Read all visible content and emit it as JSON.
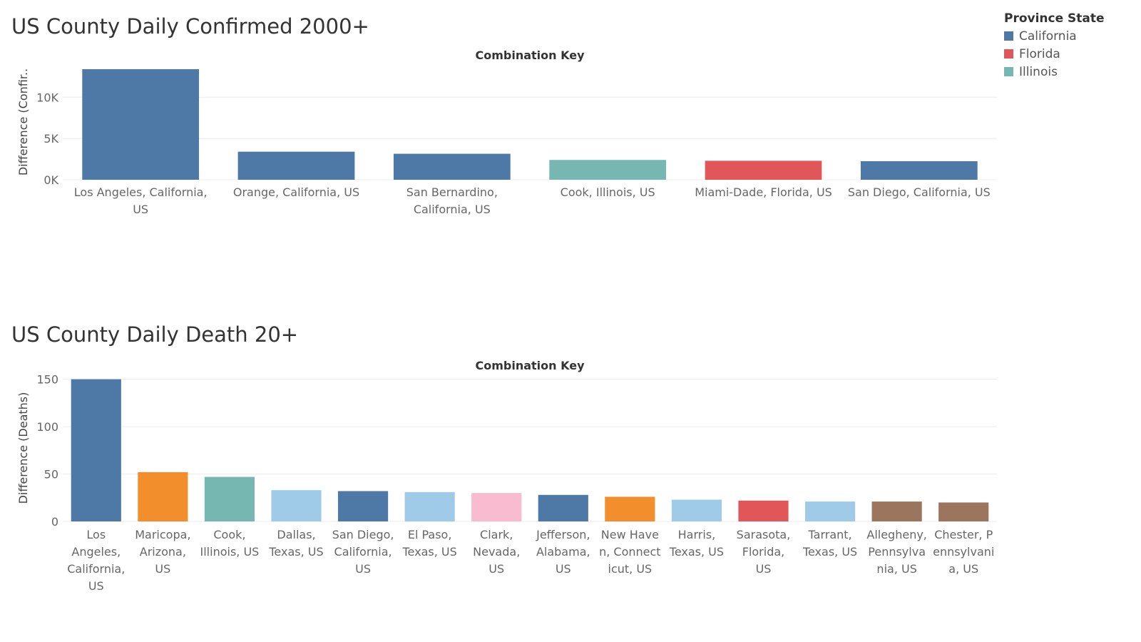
{
  "legend": {
    "title": "Province State",
    "items": [
      {
        "label": "California",
        "color": "#4e79a7"
      },
      {
        "label": "Florida",
        "color": "#e15759"
      },
      {
        "label": "Illinois",
        "color": "#76b7b2"
      }
    ]
  },
  "chart_data": [
    {
      "type": "bar",
      "title": "US County Daily Confirmed 2000+",
      "column_header": "Combination Key",
      "ylabel": "Difference (Confir..",
      "ylim": [
        0,
        14000
      ],
      "yticks": [
        0,
        5000,
        10000
      ],
      "ytick_labels": [
        "0K",
        "5K",
        "10K"
      ],
      "grid": true,
      "categories": [
        {
          "lines": [
            "Los Angeles, California,",
            "US"
          ],
          "value": 13400,
          "color": "#4e79a7"
        },
        {
          "lines": [
            "Orange, California, US"
          ],
          "value": 3400,
          "color": "#4e79a7"
        },
        {
          "lines": [
            "San Bernardino,",
            "California, US"
          ],
          "value": 3150,
          "color": "#4e79a7"
        },
        {
          "lines": [
            "Cook, Illinois, US"
          ],
          "value": 2400,
          "color": "#76b7b2"
        },
        {
          "lines": [
            "Miami-Dade, Florida, US"
          ],
          "value": 2300,
          "color": "#e15759"
        },
        {
          "lines": [
            "San Diego, California, US"
          ],
          "value": 2250,
          "color": "#4e79a7"
        }
      ]
    },
    {
      "type": "bar",
      "title": "US County Daily Death 20+",
      "column_header": "Combination Key",
      "ylabel": "Difference (Deaths)",
      "ylim": [
        0,
        155
      ],
      "yticks": [
        0,
        50,
        100,
        150
      ],
      "ytick_labels": [
        "0",
        "50",
        "100",
        "150"
      ],
      "grid": true,
      "categories": [
        {
          "lines": [
            "Los",
            "Angeles,",
            "California,",
            "US"
          ],
          "value": 150,
          "color": "#4e79a7"
        },
        {
          "lines": [
            "Maricopa,",
            "Arizona,",
            "US"
          ],
          "value": 52,
          "color": "#f28e2b"
        },
        {
          "lines": [
            "Cook,",
            "Illinois, US"
          ],
          "value": 47,
          "color": "#76b7b2"
        },
        {
          "lines": [
            "Dallas,",
            "Texas, US"
          ],
          "value": 33,
          "color": "#a0cbe8"
        },
        {
          "lines": [
            "San Diego,",
            "California,",
            "US"
          ],
          "value": 32,
          "color": "#4e79a7"
        },
        {
          "lines": [
            "El Paso,",
            "Texas, US"
          ],
          "value": 31,
          "color": "#a0cbe8"
        },
        {
          "lines": [
            "Clark,",
            "Nevada,",
            "US"
          ],
          "value": 30,
          "color": "#f8bbd0"
        },
        {
          "lines": [
            "Jefferson,",
            "Alabama,",
            "US"
          ],
          "value": 28,
          "color": "#4e79a7"
        },
        {
          "lines": [
            "New Have",
            "n, Connect",
            "icut, US"
          ],
          "value": 26,
          "color": "#f28e2b"
        },
        {
          "lines": [
            "Harris,",
            "Texas, US"
          ],
          "value": 23,
          "color": "#a0cbe8"
        },
        {
          "lines": [
            "Sarasota,",
            "Florida,",
            "US"
          ],
          "value": 22,
          "color": "#e15759"
        },
        {
          "lines": [
            "Tarrant,",
            "Texas, US"
          ],
          "value": 21,
          "color": "#a0cbe8"
        },
        {
          "lines": [
            "Allegheny,",
            "Pennsylva",
            "nia, US"
          ],
          "value": 21,
          "color": "#9c755f"
        },
        {
          "lines": [
            "Chester, P",
            "ennsylvani",
            "a, US"
          ],
          "value": 20,
          "color": "#9c755f"
        }
      ]
    }
  ]
}
